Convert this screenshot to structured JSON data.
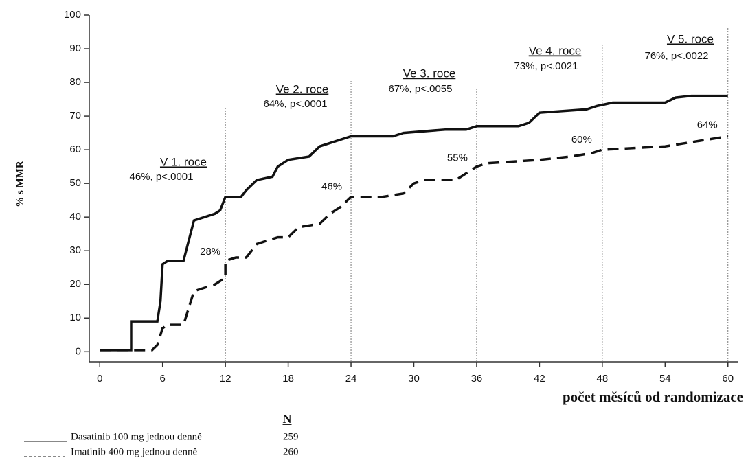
{
  "chart_data": {
    "type": "line",
    "y_label": "% s MMR",
    "x_label": "počet měsíců od randomizace",
    "xlim": [
      -1,
      61
    ],
    "ylim": [
      -3,
      100
    ],
    "xticks": [
      0,
      6,
      12,
      18,
      24,
      30,
      36,
      42,
      48,
      54,
      60
    ],
    "yticks": [
      0,
      10,
      20,
      30,
      40,
      50,
      60,
      70,
      80,
      90,
      100
    ],
    "year_lines": [
      12,
      24,
      36,
      48,
      60
    ],
    "year_annotations": [
      {
        "title": "V 1. roce",
        "text": "46%, p<.0001"
      },
      {
        "title": "Ve 2. roce",
        "text": "64%, p<.0001"
      },
      {
        "title": "Ve 3. roce",
        "text": "67%, p<.0055"
      },
      {
        "title": "Ve 4. roce",
        "text": "73%, p<.0021"
      },
      {
        "title": "V 5. roce",
        "text": "76%, p<.0022"
      }
    ],
    "point_labels": [
      {
        "x": 12,
        "value": 28,
        "label": "28%"
      },
      {
        "x": 24,
        "value": 46,
        "label": "46%"
      },
      {
        "x": 36,
        "value": 55,
        "label": "55%"
      },
      {
        "x": 48,
        "value": 60,
        "label": "60%"
      },
      {
        "x": 60,
        "value": 64,
        "label": "64%"
      }
    ],
    "n_header": "N",
    "series": [
      {
        "name": "Dasatinib 100 mg jednou denně",
        "color": "#111111",
        "line_style": "solid",
        "n": 259,
        "x": [
          0,
          3,
          3,
          5.5,
          5.8,
          6,
          6.5,
          8,
          8.5,
          9,
          10,
          11,
          11.5,
          12,
          13.5,
          14,
          15,
          16.5,
          17,
          18,
          20,
          21,
          22,
          24,
          28,
          29,
          33,
          35,
          36,
          40,
          41,
          42,
          46.5,
          47.5,
          49,
          54,
          55,
          56.5,
          60
        ],
        "values": [
          0.5,
          0.5,
          9,
          9,
          15,
          26,
          27,
          27,
          33,
          39,
          40,
          41,
          42,
          46,
          46,
          48,
          51,
          52,
          55,
          57,
          58,
          61,
          62,
          64,
          64,
          65,
          66,
          66,
          67,
          67,
          68,
          71,
          72,
          73,
          74,
          74,
          75.5,
          76,
          76
        ]
      },
      {
        "name": "Imatinib 400 mg jednou denně",
        "color": "#111111",
        "line_style": "dashed",
        "n": 260,
        "x": [
          0,
          5,
          5.5,
          6,
          6.5,
          8,
          8.5,
          9,
          10,
          11,
          12,
          12,
          13,
          14,
          15,
          16,
          17,
          18,
          19,
          21,
          22,
          23,
          24,
          27,
          29,
          30,
          31,
          34,
          35,
          36,
          37,
          42,
          45,
          47,
          48,
          54,
          56,
          58,
          60
        ],
        "values": [
          0.5,
          0.5,
          2,
          7,
          8,
          8,
          13,
          18,
          19,
          20,
          22,
          27,
          28,
          28,
          32,
          33,
          34,
          34,
          37,
          38,
          41,
          43,
          46,
          46,
          47,
          50,
          51,
          51,
          53,
          55,
          56,
          57,
          58,
          59,
          60,
          61,
          62,
          63,
          64
        ]
      }
    ]
  }
}
